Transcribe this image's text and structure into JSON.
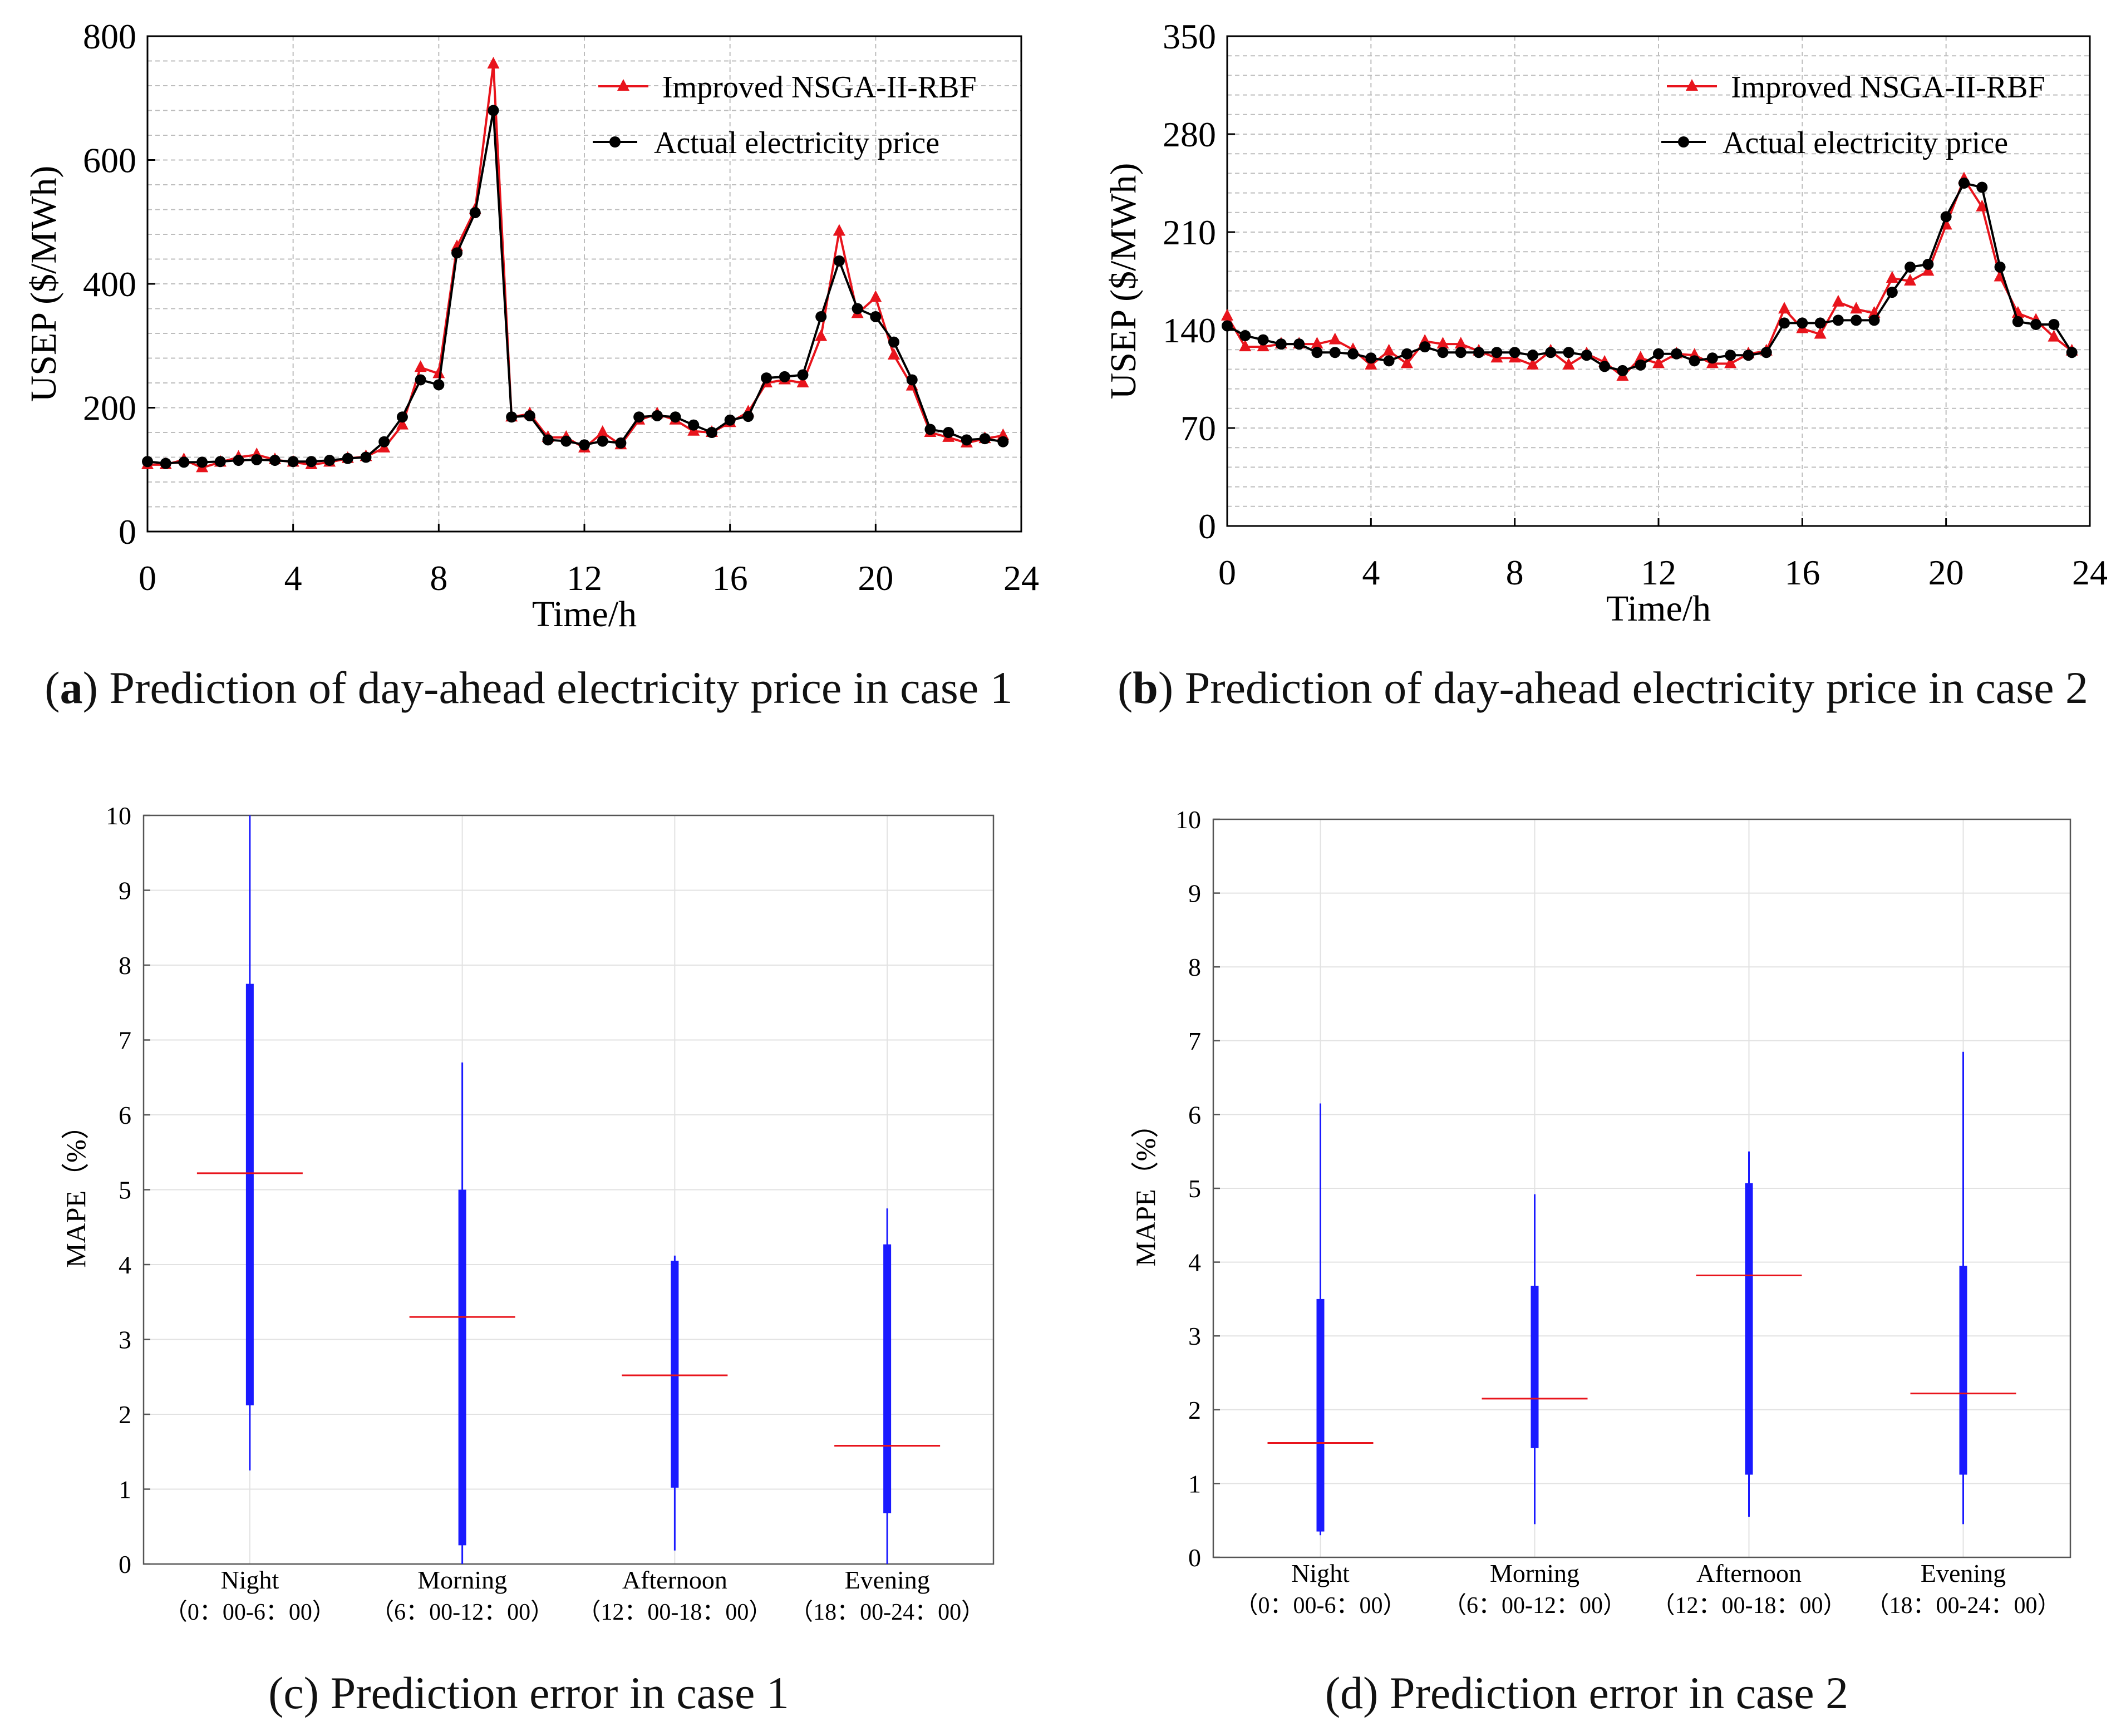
{
  "colors": {
    "predicted": "#e8141c",
    "actual": "#000000",
    "box": "#1a1aff",
    "median": "#e8141c",
    "grid": "#bdbdbd"
  },
  "panels": {
    "a": {
      "letter": "a",
      "caption": "Prediction of day-ahead electricity price in case 1",
      "caption_paren_open": "(",
      "caption_paren_close": ")"
    },
    "b": {
      "letter": "b",
      "caption": "Prediction of day-ahead electricity price in case 2",
      "caption_paren_open": "(",
      "caption_paren_close": ")"
    },
    "c": {
      "caption": "(c) Prediction error in case 1"
    },
    "d": {
      "caption": "(d) Prediction error in case 2"
    }
  },
  "chart_data": [
    {
      "id": "a",
      "type": "line",
      "xlabel": "Time/h",
      "ylabel": "USEP ($/MWh)",
      "xlim": [
        0,
        24
      ],
      "ylim": [
        0,
        800
      ],
      "xticks": [
        "0",
        "4",
        "8",
        "12",
        "16",
        "20",
        "24"
      ],
      "yticks": [
        "0",
        "200",
        "400",
        "600",
        "800"
      ],
      "legend_position": "top-right",
      "x": [
        0,
        0.5,
        1,
        1.5,
        2,
        2.5,
        3,
        3.5,
        4,
        4.5,
        5,
        5.5,
        6,
        6.5,
        7,
        7.5,
        8,
        8.5,
        9,
        9.5,
        10,
        10.5,
        11,
        11.5,
        12,
        12.5,
        13,
        13.5,
        14,
        14.5,
        15,
        15.5,
        16,
        16.5,
        17,
        17.5,
        18,
        18.5,
        19,
        19.5,
        20,
        20.5,
        21,
        21.5,
        22,
        22.5,
        23,
        23.5
      ],
      "series": [
        {
          "name": "Improved NSGA-II-RBF",
          "marker": "triangle",
          "values": [
            108,
            108,
            116,
            103,
            112,
            120,
            124,
            116,
            112,
            108,
            112,
            118,
            121,
            135,
            172,
            265,
            255,
            460,
            520,
            755,
            185,
            190,
            152,
            152,
            135,
            160,
            140,
            180,
            190,
            180,
            162,
            160,
            176,
            193,
            240,
            245,
            240,
            315,
            485,
            352,
            378,
            285,
            235,
            160,
            152,
            143,
            150,
            155
          ]
        },
        {
          "name": "Actual electricity price",
          "marker": "circle",
          "values": [
            113,
            110,
            112,
            112,
            113,
            115,
            116,
            115,
            113,
            113,
            115,
            118,
            120,
            145,
            185,
            245,
            237,
            450,
            515,
            680,
            185,
            187,
            148,
            146,
            140,
            146,
            143,
            185,
            187,
            185,
            172,
            160,
            180,
            186,
            248,
            250,
            253,
            347,
            437,
            360,
            347,
            306,
            245,
            165,
            160,
            148,
            150,
            145
          ]
        }
      ]
    },
    {
      "id": "b",
      "type": "line",
      "xlabel": "Time/h",
      "ylabel": "USEP ($/MWh)",
      "xlim": [
        0,
        24
      ],
      "ylim": [
        0,
        350
      ],
      "xticks": [
        "0",
        "4",
        "8",
        "12",
        "16",
        "20",
        "24"
      ],
      "yticks": [
        "0",
        "70",
        "140",
        "210",
        "280",
        "350"
      ],
      "legend_position": "top-right",
      "x": [
        0,
        0.5,
        1,
        1.5,
        2,
        2.5,
        3,
        3.5,
        4,
        4.5,
        5,
        5.5,
        6,
        6.5,
        7,
        7.5,
        8,
        8.5,
        9,
        9.5,
        10,
        10.5,
        11,
        11.5,
        12,
        12.5,
        13,
        13.5,
        14,
        14.5,
        15,
        15.5,
        16,
        16.5,
        17,
        17.5,
        18,
        18.5,
        19,
        19.5,
        20,
        20.5,
        21,
        21.5,
        22,
        22.5,
        23,
        23.5
      ],
      "series": [
        {
          "name": "Improved NSGA-II-RBF",
          "marker": "triangle",
          "values": [
            150,
            128,
            128,
            130,
            130,
            130,
            133,
            126,
            115,
            125,
            116,
            132,
            130,
            130,
            125,
            120,
            120,
            115,
            125,
            115,
            123,
            117,
            107,
            120,
            116,
            123,
            122,
            116,
            116,
            123,
            125,
            155,
            141,
            137,
            160,
            155,
            152,
            177,
            175,
            182,
            215,
            248,
            228,
            178,
            152,
            147,
            135,
            125
          ]
        },
        {
          "name": "Actual electricity price",
          "marker": "circle",
          "values": [
            143,
            136,
            133,
            130,
            130,
            124,
            124,
            123,
            120,
            118,
            123,
            128,
            124,
            124,
            124,
            124,
            124,
            122,
            124,
            124,
            122,
            114,
            111,
            115,
            123,
            123,
            118,
            120,
            122,
            122,
            124,
            145,
            145,
            145,
            147,
            147,
            147,
            167,
            185,
            187,
            221,
            245,
            242,
            185,
            146,
            144,
            144,
            124
          ]
        }
      ]
    },
    {
      "id": "c",
      "type": "box",
      "ylabel": "MAPE（%）",
      "ylim": [
        0,
        10
      ],
      "yticks": [
        "0",
        "1",
        "2",
        "3",
        "4",
        "5",
        "6",
        "7",
        "8",
        "9",
        "10"
      ],
      "categories": [
        {
          "name": "Night",
          "range": "（0：00-6：00）"
        },
        {
          "name": "Morning",
          "range": "（6：00-12：00）"
        },
        {
          "name": "Afternoon",
          "range": "（12：00-18：00）"
        },
        {
          "name": "Evening",
          "range": "（18：00-24：00）"
        }
      ],
      "boxes": [
        {
          "min": 1.25,
          "q1": 2.12,
          "median": 5.22,
          "q3": 7.75,
          "max": 10.0
        },
        {
          "min": 0.0,
          "q1": 0.25,
          "median": 3.3,
          "q3": 5.0,
          "max": 6.7
        },
        {
          "min": 0.18,
          "q1": 1.02,
          "median": 2.52,
          "q3": 4.05,
          "max": 4.12
        },
        {
          "min": 0.0,
          "q1": 0.68,
          "median": 1.58,
          "q3": 4.27,
          "max": 4.75
        }
      ]
    },
    {
      "id": "d",
      "type": "box",
      "ylabel": "MAPE（%）",
      "ylim": [
        0,
        10
      ],
      "yticks": [
        "0",
        "1",
        "2",
        "3",
        "4",
        "5",
        "6",
        "7",
        "8",
        "9",
        "10"
      ],
      "categories": [
        {
          "name": "Night",
          "range": "（0：00-6：00）"
        },
        {
          "name": "Morning",
          "range": "（6：00-12：00）"
        },
        {
          "name": "Afternoon",
          "range": "（12：00-18：00）"
        },
        {
          "name": "Evening",
          "range": "（18：00-24：00）"
        }
      ],
      "boxes": [
        {
          "min": 0.3,
          "q1": 0.35,
          "median": 1.55,
          "q3": 3.5,
          "max": 6.15
        },
        {
          "min": 0.45,
          "q1": 1.48,
          "median": 2.15,
          "q3": 3.68,
          "max": 4.92
        },
        {
          "min": 0.55,
          "q1": 1.12,
          "median": 3.82,
          "q3": 5.07,
          "max": 5.5
        },
        {
          "min": 0.45,
          "q1": 1.12,
          "median": 2.22,
          "q3": 3.95,
          "max": 6.85
        }
      ]
    }
  ]
}
